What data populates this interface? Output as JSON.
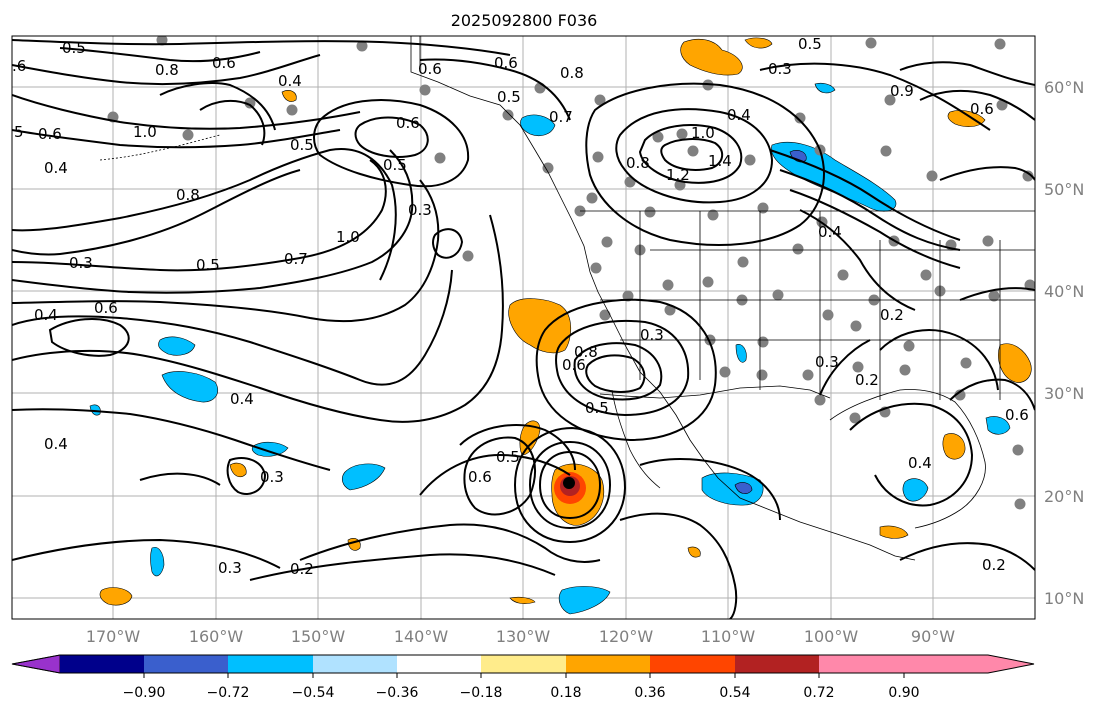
{
  "title": "2025092800 F036",
  "map": {
    "lon_labels": [
      "170°W",
      "160°W",
      "150°W",
      "140°W",
      "130°W",
      "120°W",
      "110°W",
      "100°W",
      "90°W"
    ],
    "lat_labels": [
      "60°N",
      "50°N",
      "40°N",
      "30°N",
      "20°N",
      "10°N"
    ],
    "contour_labels": [
      "0.5",
      ".6",
      "0.6",
      "5",
      "0.6",
      "0.4",
      "1.0",
      "0.8",
      "0.4",
      "0.5",
      "0.6",
      "0.5",
      "0.8",
      "0.3",
      "1.0",
      "0.3",
      "0.5",
      "0.7",
      "0.4",
      "0.6",
      "0.4",
      "0.4",
      "0.3",
      "0.3",
      "0.2",
      "0.6",
      "0.5",
      "0.6",
      "0.7",
      "0.8",
      "0.6",
      "0.3",
      "0.5",
      "0.6",
      "0.5",
      "0.4",
      "0.3",
      "0.5",
      "1.0",
      "1.4",
      "1.2",
      "0.8",
      "0.4",
      "0.6",
      "0.2",
      "0.3",
      "0.2",
      "0.4",
      "0.2",
      "0.6",
      "0.8",
      "0.9"
    ]
  },
  "colorbar": {
    "tick_labels": [
      "−0.90",
      "−0.72",
      "−0.54",
      "−0.36",
      "−0.18",
      "0.18",
      "0.36",
      "0.54",
      "0.72",
      "0.90"
    ],
    "colors": [
      "#9932cc",
      "#00008b",
      "#3a5fcd",
      "#00bfff",
      "#b0e2ff",
      "#ffffff",
      "#ffec8b",
      "#ffa500",
      "#ff4500",
      "#b22222",
      "#ff88aa"
    ]
  },
  "colors": {
    "positive_fill": "#ffa500",
    "negative_fill": "#00bfff",
    "station_dot": "#808080",
    "gridline": "#b0b0b0"
  }
}
